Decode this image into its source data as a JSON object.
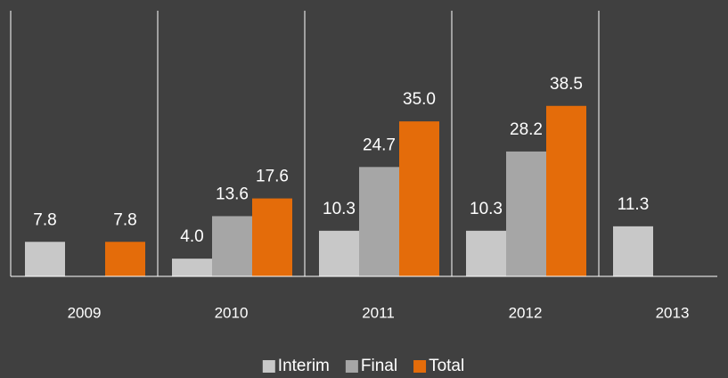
{
  "chart_data": {
    "type": "bar",
    "categories": [
      "2009",
      "2010",
      "2011",
      "2012",
      "2013"
    ],
    "series": [
      {
        "name": "Interim",
        "color": "#c8c8c8",
        "values": [
          7.8,
          4.0,
          10.3,
          10.3,
          11.3
        ],
        "value_labels": [
          "7.8",
          "4.0",
          "10.3",
          "10.3",
          "11.3"
        ]
      },
      {
        "name": "Final",
        "color": "#a6a6a6",
        "values": [
          null,
          13.6,
          24.7,
          28.2,
          null
        ],
        "value_labels": [
          null,
          "13.6",
          "24.7",
          "28.2",
          null
        ]
      },
      {
        "name": "Total",
        "color": "#e46c0a",
        "values": [
          7.8,
          17.6,
          35.0,
          38.5,
          null
        ],
        "value_labels": [
          "7.8",
          "17.6",
          "35.0",
          "38.5",
          null
        ]
      }
    ],
    "ylim": [
      0,
      60
    ]
  }
}
